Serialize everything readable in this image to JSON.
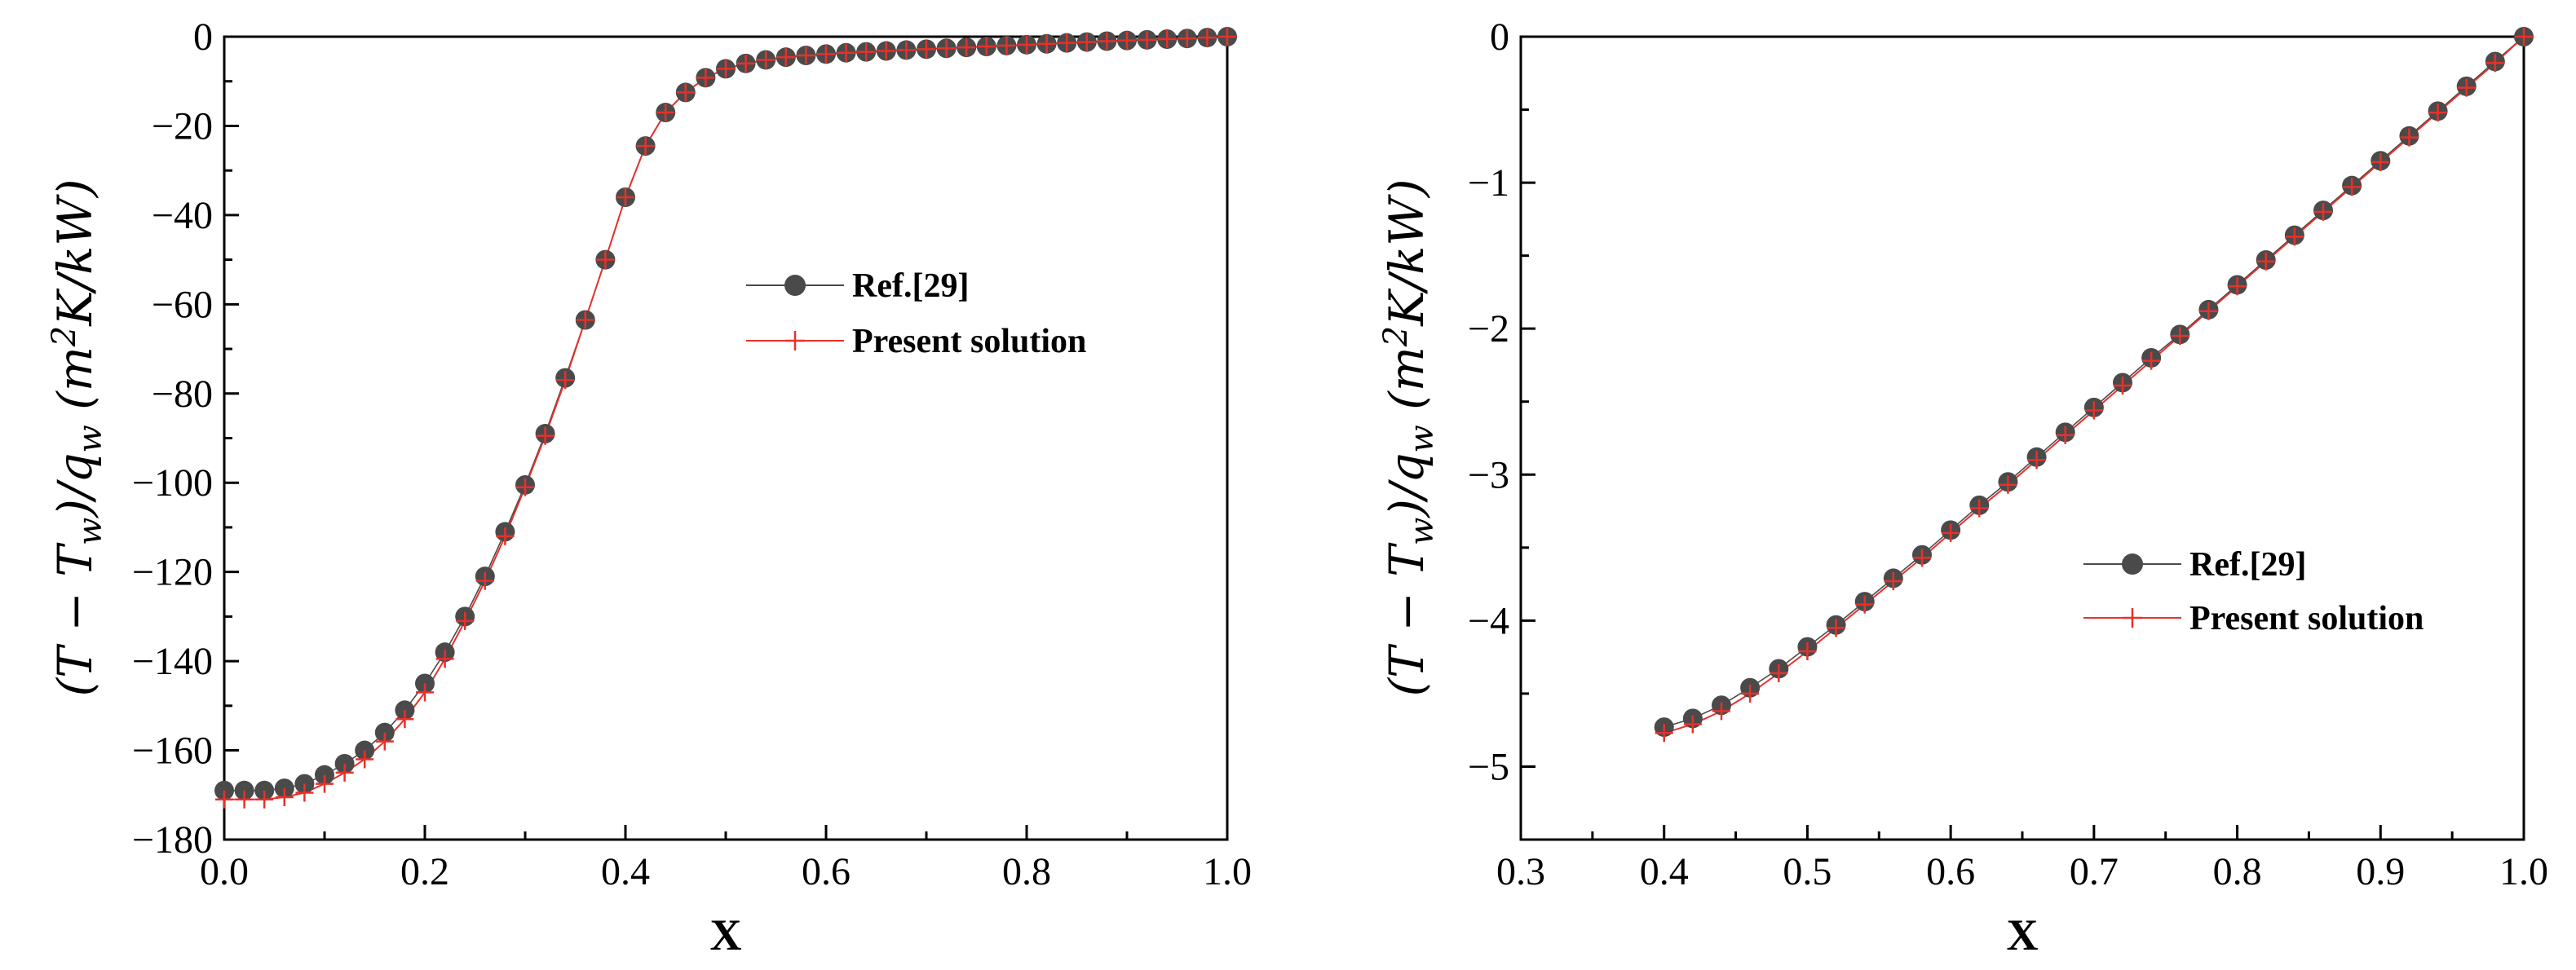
{
  "colors": {
    "reference": "#4a4a4a",
    "present": "#e8302b",
    "axis": "#000000"
  },
  "chart_data": [
    {
      "type": "line",
      "panel": "left",
      "xlabel": "X",
      "ylabel": "(T − T_w)/q_w (m²K/kW)",
      "ylabel_parts": {
        "open": "(T − T",
        "w_sub": "w",
        "mid": ")/q",
        "w_sub2": "w",
        "units_open": " (m",
        "sq": "2",
        "units_close": "K/kW)"
      },
      "xlim": [
        0.0,
        1.0
      ],
      "ylim": [
        -180,
        0
      ],
      "xticks": [
        0.0,
        0.2,
        0.4,
        0.6,
        0.8,
        1.0
      ],
      "xtick_labels": [
        "0.0",
        "0.2",
        "0.4",
        "0.6",
        "0.8",
        "1.0"
      ],
      "yticks": [
        0,
        -20,
        -40,
        -60,
        -80,
        -100,
        -120,
        -140,
        -160,
        -180
      ],
      "ytick_labels": [
        "0",
        "−20",
        "−40",
        "−60",
        "−80",
        "−100",
        "−120",
        "−140",
        "−160",
        "−180"
      ],
      "legend": {
        "position": "center-right",
        "entries": [
          "Ref.[29]",
          "Present solution"
        ]
      },
      "series": [
        {
          "name": "Ref.[29]",
          "marker": "circle",
          "x": [
            0.0,
            0.02,
            0.04,
            0.06,
            0.08,
            0.1,
            0.12,
            0.14,
            0.16,
            0.18,
            0.2,
            0.22,
            0.24,
            0.26,
            0.28,
            0.3,
            0.32,
            0.34,
            0.36,
            0.38,
            0.4,
            0.42,
            0.44,
            0.46,
            0.48,
            0.5,
            0.52,
            0.54,
            0.56,
            0.58,
            0.6,
            0.62,
            0.64,
            0.66,
            0.68,
            0.7,
            0.72,
            0.74,
            0.76,
            0.78,
            0.8,
            0.82,
            0.84,
            0.86,
            0.88,
            0.9,
            0.92,
            0.94,
            0.96,
            0.98,
            1.0
          ],
          "y": [
            -169,
            -169,
            -169,
            -168.5,
            -167.5,
            -165.5,
            -163,
            -160,
            -156,
            -151,
            -145,
            -138,
            -130,
            -121,
            -111,
            -100.5,
            -89,
            -76.5,
            -63.5,
            -50,
            -36,
            -24.5,
            -17,
            -12.5,
            -9.2,
            -7.2,
            -6,
            -5.2,
            -4.6,
            -4.2,
            -3.9,
            -3.6,
            -3.4,
            -3.2,
            -3.0,
            -2.8,
            -2.6,
            -2.4,
            -2.2,
            -2.0,
            -1.8,
            -1.6,
            -1.4,
            -1.2,
            -1.0,
            -0.85,
            -0.7,
            -0.55,
            -0.4,
            -0.2,
            0
          ]
        },
        {
          "name": "Present solution",
          "marker": "plus",
          "x": [
            0.0,
            0.02,
            0.04,
            0.06,
            0.08,
            0.1,
            0.12,
            0.14,
            0.16,
            0.18,
            0.2,
            0.22,
            0.24,
            0.26,
            0.28,
            0.3,
            0.32,
            0.34,
            0.36,
            0.38,
            0.4,
            0.42,
            0.44,
            0.46,
            0.48,
            0.5,
            0.52,
            0.54,
            0.56,
            0.58,
            0.6,
            0.62,
            0.64,
            0.66,
            0.68,
            0.7,
            0.72,
            0.74,
            0.76,
            0.78,
            0.8,
            0.82,
            0.84,
            0.86,
            0.88,
            0.9,
            0.92,
            0.94,
            0.96,
            0.98,
            1.0
          ],
          "y": [
            -171,
            -171,
            -171,
            -170.5,
            -169.5,
            -167.5,
            -165,
            -162,
            -158,
            -153,
            -147,
            -139.5,
            -131,
            -122,
            -112,
            -101,
            -89.5,
            -77,
            -63.5,
            -50,
            -36,
            -24.5,
            -17,
            -12.5,
            -9.2,
            -7.2,
            -6,
            -5.2,
            -4.6,
            -4.2,
            -3.9,
            -3.6,
            -3.4,
            -3.2,
            -3.0,
            -2.8,
            -2.6,
            -2.4,
            -2.2,
            -2.0,
            -1.8,
            -1.6,
            -1.4,
            -1.2,
            -1.0,
            -0.85,
            -0.7,
            -0.55,
            -0.4,
            -0.2,
            0
          ]
        }
      ]
    },
    {
      "type": "line",
      "panel": "right",
      "xlabel": "X",
      "ylabel": "(T − T_w)/q_w (m²K/kW)",
      "ylabel_parts": {
        "open": "(T − T",
        "w_sub": "w",
        "mid": ")/q",
        "w_sub2": "w",
        "units_open": " (m",
        "sq": "2",
        "units_close": "K/kW)"
      },
      "xlim": [
        0.3,
        1.0
      ],
      "ylim": [
        -5.5,
        0
      ],
      "xticks": [
        0.3,
        0.4,
        0.5,
        0.6,
        0.7,
        0.8,
        0.9,
        1.0
      ],
      "xtick_labels": [
        "0.3",
        "0.4",
        "0.5",
        "0.6",
        "0.7",
        "0.8",
        "0.9",
        "1.0"
      ],
      "yticks": [
        0,
        -1,
        -2,
        -3,
        -4,
        -5
      ],
      "ytick_labels": [
        "0",
        "−1",
        "−2",
        "−3",
        "−4",
        "−5"
      ],
      "legend": {
        "position": "center-right",
        "entries": [
          "Ref.[29]",
          "Present solution"
        ]
      },
      "series": [
        {
          "name": "Ref.[29]",
          "marker": "circle",
          "x": [
            0.4,
            0.42,
            0.44,
            0.46,
            0.48,
            0.5,
            0.52,
            0.54,
            0.56,
            0.58,
            0.6,
            0.62,
            0.64,
            0.66,
            0.68,
            0.7,
            0.72,
            0.74,
            0.76,
            0.78,
            0.8,
            0.82,
            0.84,
            0.86,
            0.88,
            0.9,
            0.92,
            0.94,
            0.96,
            0.98,
            1.0
          ],
          "y": [
            -4.73,
            -4.67,
            -4.58,
            -4.46,
            -4.33,
            -4.18,
            -4.03,
            -3.87,
            -3.71,
            -3.55,
            -3.38,
            -3.21,
            -3.05,
            -2.88,
            -2.71,
            -2.54,
            -2.37,
            -2.2,
            -2.04,
            -1.87,
            -1.7,
            -1.53,
            -1.36,
            -1.19,
            -1.02,
            -0.85,
            -0.68,
            -0.51,
            -0.34,
            -0.17,
            0
          ]
        },
        {
          "name": "Present solution",
          "marker": "plus",
          "x": [
            0.4,
            0.42,
            0.44,
            0.46,
            0.48,
            0.5,
            0.52,
            0.54,
            0.56,
            0.58,
            0.6,
            0.62,
            0.64,
            0.66,
            0.68,
            0.7,
            0.72,
            0.74,
            0.76,
            0.78,
            0.8,
            0.82,
            0.84,
            0.86,
            0.88,
            0.9,
            0.92,
            0.94,
            0.96,
            0.98,
            1.0
          ],
          "y": [
            -4.77,
            -4.71,
            -4.62,
            -4.5,
            -4.36,
            -4.21,
            -4.05,
            -3.89,
            -3.73,
            -3.57,
            -3.4,
            -3.23,
            -3.07,
            -2.9,
            -2.73,
            -2.56,
            -2.39,
            -2.22,
            -2.05,
            -1.88,
            -1.71,
            -1.54,
            -1.37,
            -1.2,
            -1.03,
            -0.86,
            -0.69,
            -0.52,
            -0.35,
            -0.18,
            0
          ]
        }
      ]
    }
  ]
}
